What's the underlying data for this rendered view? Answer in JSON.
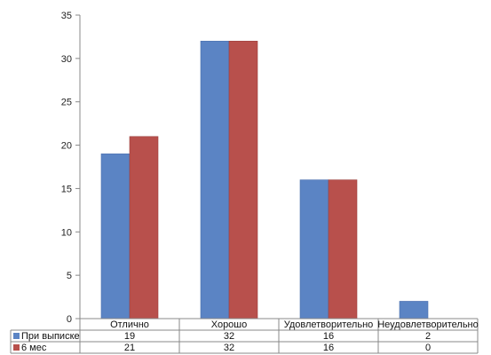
{
  "chart_data": {
    "type": "bar",
    "categories": [
      "Отлично",
      "Хорошо",
      "Удовлетворительно",
      "Неудовлетворительно"
    ],
    "series": [
      {
        "name": "При выписке",
        "values": [
          19,
          32,
          16,
          2
        ],
        "color": "#5b84c4"
      },
      {
        "name": "6 мес",
        "values": [
          21,
          32,
          16,
          0
        ],
        "color": "#b8504c"
      }
    ],
    "ylim": [
      0,
      35
    ],
    "yticks": [
      0,
      5,
      10,
      15,
      20,
      25,
      30,
      35
    ],
    "grid": false,
    "legend": "table-below"
  }
}
